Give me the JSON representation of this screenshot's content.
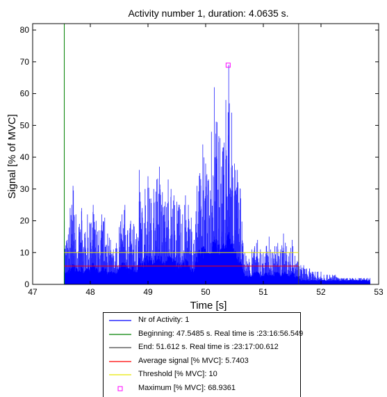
{
  "chart_data": {
    "type": "line",
    "title": "Activity number 1, duration: 4.0635 s.",
    "xlabel": "Time [s]",
    "ylabel": "Signal [% of MVC]",
    "xlim": [
      47,
      53
    ],
    "ylim": [
      0,
      82
    ],
    "xticks": [
      47,
      48,
      49,
      50,
      51,
      52,
      53
    ],
    "yticks": [
      0,
      10,
      20,
      30,
      40,
      50,
      60,
      70,
      80
    ],
    "grid": false,
    "legend_position": "bottom-outside",
    "series": [
      {
        "name": "Nr of Activity: 1",
        "color": "#0000ff",
        "kind": "emg-envelope",
        "x": [
          47.55,
          47.6,
          47.65,
          47.7,
          47.75,
          47.8,
          47.85,
          47.9,
          47.95,
          48.0,
          48.05,
          48.1,
          48.15,
          48.2,
          48.25,
          48.3,
          48.35,
          48.4,
          48.45,
          48.5,
          48.55,
          48.6,
          48.65,
          48.7,
          48.75,
          48.8,
          48.85,
          48.9,
          48.95,
          49.0,
          49.05,
          49.1,
          49.15,
          49.2,
          49.25,
          49.3,
          49.35,
          49.4,
          49.45,
          49.5,
          49.55,
          49.6,
          49.65,
          49.7,
          49.75,
          49.8,
          49.85,
          49.9,
          49.95,
          50.0,
          50.05,
          50.1,
          50.15,
          50.2,
          50.25,
          50.3,
          50.35,
          50.4,
          50.45,
          50.5,
          50.55,
          50.6,
          50.65,
          50.7,
          50.75,
          50.8,
          50.85,
          50.9,
          50.95,
          51.0,
          51.05,
          51.1,
          51.15,
          51.2,
          51.25,
          51.3,
          51.35,
          51.4,
          51.45,
          51.5,
          51.55,
          51.6,
          51.65,
          51.7,
          51.75,
          51.8,
          51.85,
          51.9,
          51.95,
          52.0,
          52.05,
          52.1,
          52.15,
          52.2,
          52.25,
          52.3,
          52.35,
          52.4,
          52.45,
          52.5,
          52.55,
          52.6,
          52.65,
          52.7,
          52.75,
          52.8,
          52.85
        ],
        "y": [
          20,
          14,
          24,
          31,
          22,
          18,
          24,
          16,
          22,
          19,
          25,
          20,
          17,
          22,
          21,
          16,
          14,
          11,
          13,
          18,
          22,
          25,
          17,
          20,
          19,
          16,
          36,
          24,
          30,
          34,
          27,
          30,
          33,
          37,
          29,
          26,
          33,
          30,
          28,
          26,
          25,
          22,
          28,
          25,
          21,
          14,
          31,
          35,
          44,
          38,
          33,
          48,
          62,
          51,
          46,
          43,
          58,
          69,
          54,
          38,
          36,
          30,
          13,
          9,
          8,
          11,
          12,
          14,
          11,
          10,
          12,
          15,
          10,
          12,
          13,
          11,
          16,
          12,
          10,
          14,
          9,
          7,
          6,
          6,
          5,
          5,
          4,
          4,
          4,
          4,
          3,
          3,
          3,
          3,
          3,
          2,
          2,
          2,
          2,
          2,
          2,
          2,
          2,
          2,
          2,
          2,
          2
        ],
        "baseline": [
          3,
          3,
          4,
          5,
          4,
          3,
          4,
          3,
          4,
          4,
          5,
          4,
          3,
          4,
          4,
          3,
          3,
          3,
          3,
          4,
          5,
          5,
          4,
          4,
          4,
          3,
          6,
          5,
          6,
          7,
          6,
          6,
          7,
          7,
          6,
          5,
          7,
          6,
          6,
          5,
          5,
          5,
          6,
          5,
          4,
          3,
          7,
          8,
          9,
          8,
          7,
          9,
          11,
          10,
          9,
          9,
          10,
          12,
          10,
          8,
          7,
          6,
          3,
          2,
          2,
          2,
          3,
          3,
          2,
          2,
          3,
          3,
          2,
          3,
          3,
          2,
          3,
          3,
          2,
          3,
          2,
          2,
          1,
          1,
          1,
          1,
          1,
          1,
          1,
          1,
          1,
          1,
          1,
          1,
          1,
          1,
          1,
          1,
          1,
          1,
          1,
          1,
          1,
          1,
          1,
          1,
          1
        ]
      },
      {
        "name": "Beginning: 47.5485 s. Real time is :23:16:56.549",
        "color": "#008000",
        "kind": "vline",
        "x": [
          47.5485
        ]
      },
      {
        "name": "End: 51.612 s. Real time is :23:17:00.612",
        "color": "#404040",
        "kind": "vline",
        "x": [
          51.612
        ]
      },
      {
        "name": "Average signal [% MVC]: 5.7403",
        "color": "#ff0000",
        "kind": "hline",
        "x": [
          47.5485,
          51.612
        ],
        "y": [
          5.7403,
          5.7403
        ]
      },
      {
        "name": "Threshold [% MVC]: 10",
        "color": "#e8e800",
        "kind": "hline",
        "x": [
          47.5485,
          51.612
        ],
        "y": [
          10,
          10
        ]
      },
      {
        "name": "Maximum [% MVC]: 68.9361",
        "color": "#ff00ff",
        "kind": "marker",
        "x": [
          50.39
        ],
        "y": [
          68.9361
        ]
      }
    ]
  }
}
